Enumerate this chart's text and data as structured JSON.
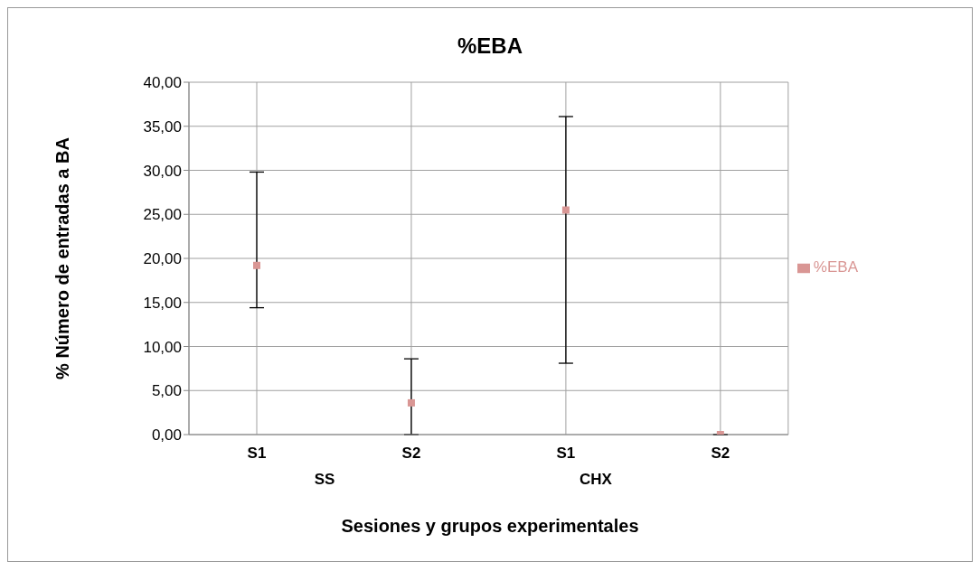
{
  "chart_data": {
    "type": "scatter",
    "title": "%EBA",
    "xlabel": "Sesiones y grupos experimentales",
    "ylabel": "% Número de entradas a BA",
    "categories": [
      "S1",
      "S2",
      "S1",
      "S2"
    ],
    "annotations": [
      "SS",
      "CHX"
    ],
    "series": [
      {
        "name": "%EBA",
        "color": "#d99694",
        "values": [
          19.2,
          3.6,
          25.5,
          0
        ],
        "errors": [
          [
            14.4,
            29.8
          ],
          [
            0,
            8.6
          ],
          [
            8.1,
            36.1
          ],
          [
            0,
            0
          ]
        ]
      }
    ],
    "ylim": [
      0,
      40
    ],
    "yticks": [
      {
        "value": 0,
        "label": "0,00"
      },
      {
        "value": 5,
        "label": "5,00"
      },
      {
        "value": 10,
        "label": "10,00"
      },
      {
        "value": 15,
        "label": "15,00"
      },
      {
        "value": 20,
        "label": "20,00"
      },
      {
        "value": 25,
        "label": "25,00"
      },
      {
        "value": 30,
        "label": "30,00"
      },
      {
        "value": 35,
        "label": "35,00"
      },
      {
        "value": 40,
        "label": "40,00"
      }
    ],
    "grid": true,
    "legend": "right",
    "marker": "square"
  }
}
